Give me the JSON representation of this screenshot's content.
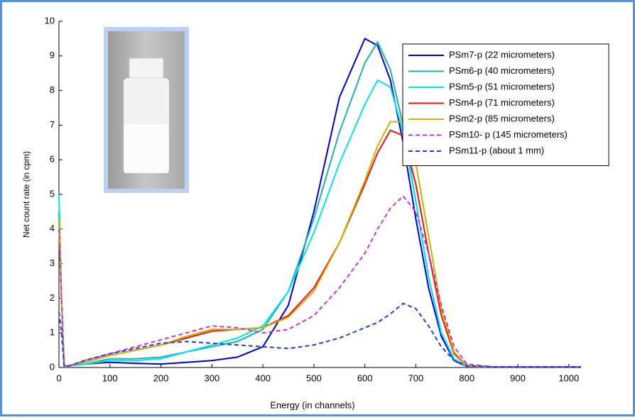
{
  "chart_data": {
    "type": "line",
    "xlabel": "Energy (in channels)",
    "ylabel": "Net count rate (in cpm)",
    "x": [
      0,
      5,
      10,
      20,
      50,
      100,
      150,
      200,
      250,
      300,
      350,
      400,
      450,
      500,
      550,
      600,
      625,
      650,
      675,
      700,
      725,
      750,
      775,
      800,
      850,
      900,
      950,
      1000,
      1024
    ],
    "xlim": [
      0,
      1024
    ],
    "xticks": [
      0,
      100,
      200,
      300,
      400,
      500,
      600,
      700,
      800,
      900,
      1000
    ],
    "ylim": [
      0,
      10
    ],
    "yticks": [
      0,
      1,
      2,
      3,
      4,
      5,
      6,
      7,
      8,
      9,
      10
    ],
    "legend": "upper right",
    "series": [
      {
        "name": "PSm7-p (22 micrometers)",
        "color": "#0000cc",
        "dashed": false,
        "values": [
          4.5,
          2,
          0.05,
          0.05,
          0.1,
          0.15,
          0.12,
          0.1,
          0.15,
          0.2,
          0.3,
          0.6,
          1.8,
          4.5,
          7.8,
          9.5,
          9.3,
          8.3,
          6.5,
          4.3,
          2.3,
          0.9,
          0.2,
          0.03,
          0.02,
          0.02,
          0.02,
          0.02,
          0.02
        ]
      },
      {
        "name": "PSm6-p (40 micrometers)",
        "color": "#20b2aa",
        "dashed": false,
        "values": [
          4.5,
          2,
          0.05,
          0.05,
          0.1,
          0.25,
          0.25,
          0.3,
          0.45,
          0.6,
          0.75,
          1.1,
          2.2,
          4.3,
          6.8,
          8.8,
          9.4,
          8.6,
          7.0,
          4.8,
          2.6,
          1.0,
          0.25,
          0.03,
          0.02,
          0.02,
          0.02,
          0.02,
          0.02
        ]
      },
      {
        "name": "PSm5-p (51 micrometers)",
        "color": "#00e5ee",
        "dashed": false,
        "values": [
          5,
          2,
          0.05,
          0.05,
          0.1,
          0.2,
          0.2,
          0.25,
          0.45,
          0.65,
          0.85,
          1.2,
          2.2,
          3.9,
          5.9,
          7.6,
          8.3,
          8.1,
          6.8,
          4.8,
          2.6,
          1.0,
          0.25,
          0.03,
          0.02,
          0.02,
          0.02,
          0.02,
          0.02
        ]
      },
      {
        "name": "PSm4-p (71 micrometers)",
        "color": "#ee1111",
        "dashed": false,
        "values": [
          4.3,
          2,
          0.05,
          0.05,
          0.15,
          0.35,
          0.5,
          0.65,
          0.85,
          1.05,
          1.1,
          1.15,
          1.5,
          2.3,
          3.6,
          5.3,
          6.2,
          6.85,
          6.7,
          5.3,
          3.3,
          1.5,
          0.4,
          0.05,
          0.02,
          0.02,
          0.02,
          0.02,
          0.02
        ]
      },
      {
        "name": "PSm2-p (85 micrometers)",
        "color": "#c8b400",
        "dashed": false,
        "values": [
          4.3,
          2,
          0.05,
          0.05,
          0.15,
          0.35,
          0.5,
          0.65,
          0.9,
          1.1,
          1.1,
          1.15,
          1.45,
          2.2,
          3.6,
          5.4,
          6.4,
          7.1,
          7.1,
          5.9,
          3.8,
          1.7,
          0.45,
          0.05,
          0.02,
          0.02,
          0.02,
          0.02,
          0.02
        ]
      },
      {
        "name": "PSm10- p (145 micrometers)",
        "color": "#cc33cc",
        "dashed": true,
        "values": [
          4,
          2,
          0.05,
          0.05,
          0.2,
          0.4,
          0.6,
          0.8,
          1.0,
          1.2,
          1.15,
          1.0,
          1.1,
          1.5,
          2.3,
          3.3,
          4.0,
          4.6,
          4.95,
          4.5,
          3.3,
          1.8,
          0.6,
          0.1,
          0.02,
          0.02,
          0.02,
          0.02,
          0.02
        ]
      },
      {
        "name": "PSm11-p (about 1 mm)",
        "color": "#1f3fd6",
        "dashed": true,
        "values": [
          1.6,
          1.0,
          0.05,
          0.05,
          0.2,
          0.4,
          0.55,
          0.7,
          0.75,
          0.7,
          0.65,
          0.6,
          0.55,
          0.65,
          0.85,
          1.15,
          1.3,
          1.55,
          1.85,
          1.7,
          1.2,
          0.6,
          0.2,
          0.05,
          0.02,
          0.02,
          0.02,
          0.02,
          0.02
        ]
      }
    ]
  }
}
